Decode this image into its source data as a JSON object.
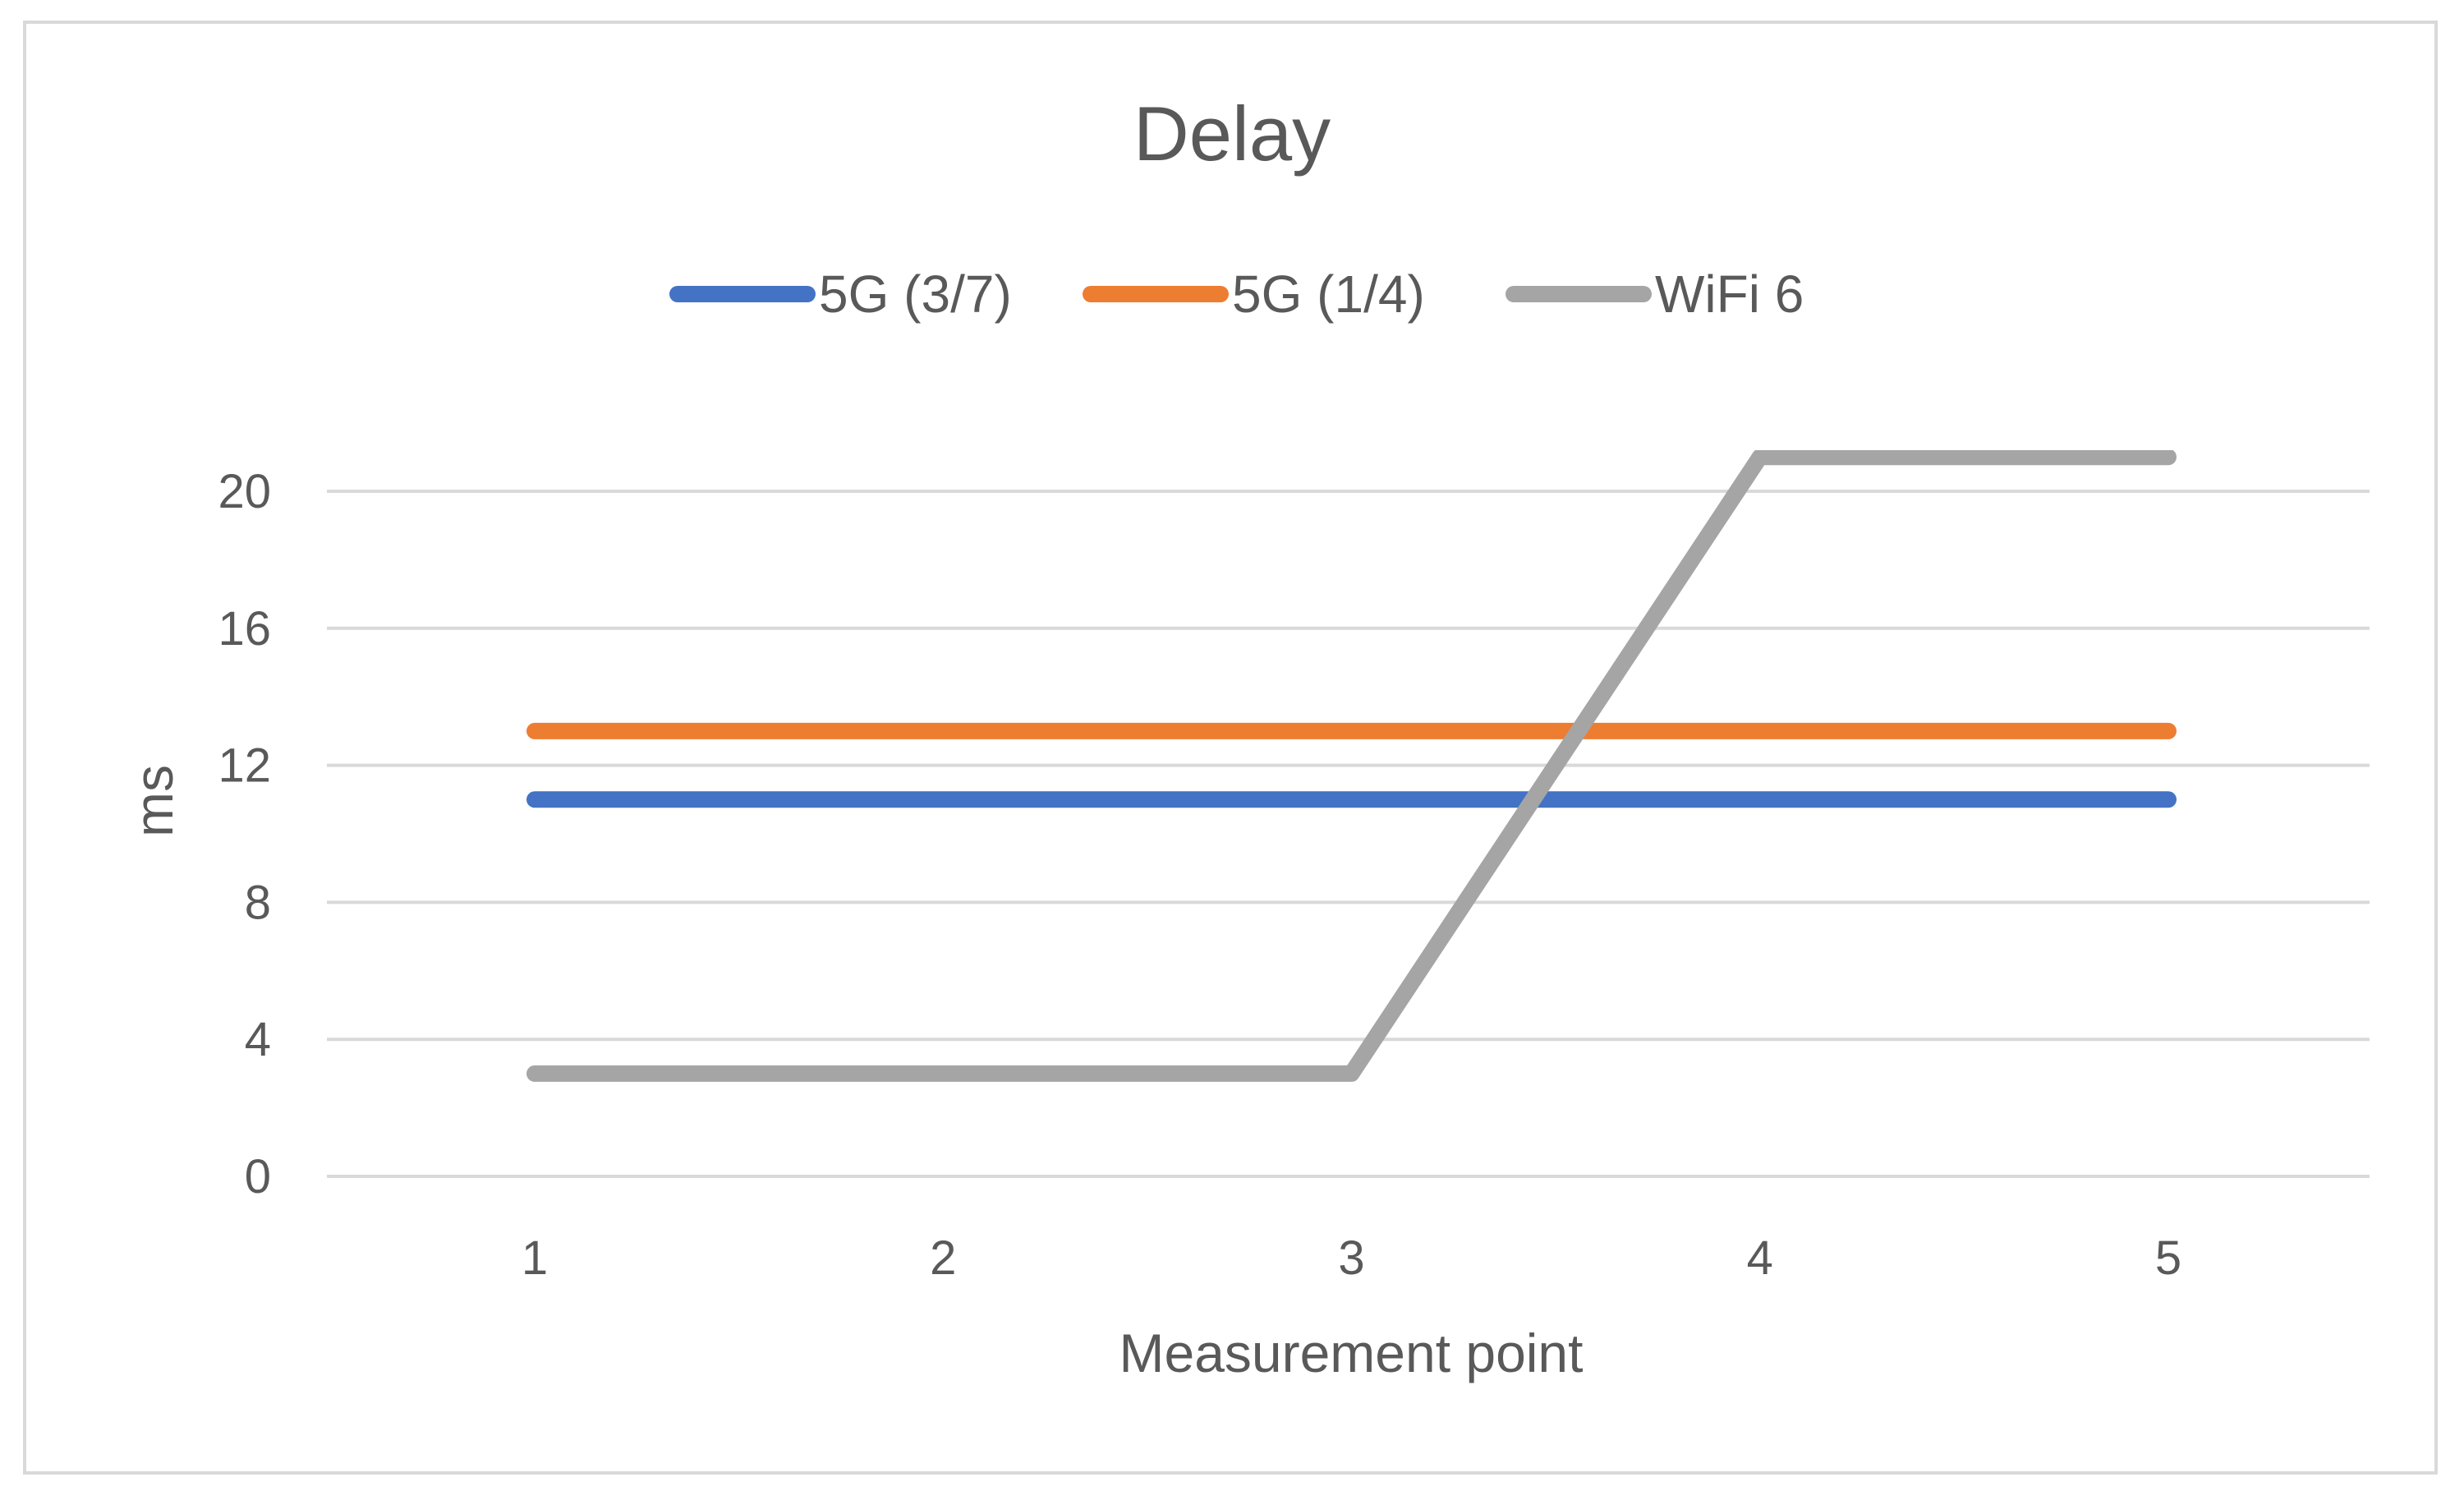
{
  "chart_data": {
    "type": "line",
    "title": "Delay",
    "xlabel": "Measurement point",
    "ylabel": "ms",
    "categories": [
      "1",
      "2",
      "3",
      "4",
      "5"
    ],
    "ylim": [
      0,
      20
    ],
    "yticks": [
      "0",
      "4",
      "8",
      "12",
      "16",
      "20"
    ],
    "grid": true,
    "legend_position": "top",
    "series": [
      {
        "name": "5G (3/7)",
        "color": "#4472c4",
        "values": [
          11,
          11,
          11,
          11,
          11
        ]
      },
      {
        "name": "5G (1/4)",
        "color": "#ed7d31",
        "values": [
          13,
          13,
          13,
          13,
          13
        ]
      },
      {
        "name": "WiFi 6",
        "color": "#a5a5a5",
        "values": [
          3,
          3,
          3,
          21,
          21
        ]
      }
    ]
  }
}
